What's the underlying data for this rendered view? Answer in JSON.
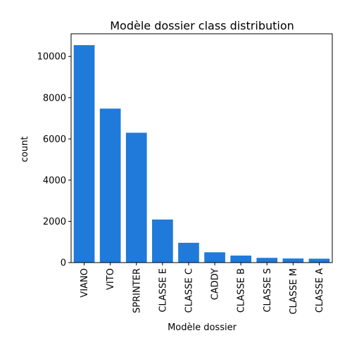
{
  "chart_data": {
    "type": "bar",
    "title": "Modèle dossier class distribution",
    "xlabel": "Modèle dossier",
    "ylabel": "count",
    "categories": [
      "VIANO",
      "VITO",
      "SPRINTER",
      "CLASSE E",
      "CLASSE C",
      "CADDY",
      "CLASSE B",
      "CLASSE S",
      "CLASSE M",
      "CLASSE A"
    ],
    "values": [
      10550,
      7470,
      6300,
      2090,
      960,
      500,
      340,
      230,
      200,
      190
    ],
    "ylim": [
      0,
      11100
    ],
    "yticks": [
      0,
      2000,
      4000,
      6000,
      8000,
      10000
    ],
    "bar_color": "#1f7ad9",
    "grid": false
  }
}
